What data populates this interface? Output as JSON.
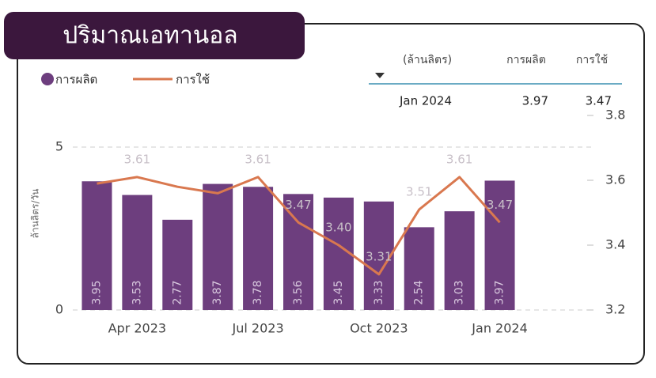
{
  "chart_data": {
    "type": "bar-line",
    "title": "ปริมาณเอทานอล",
    "y_label": "ล้านลิตร/วัน",
    "categories": [
      null,
      "Apr 2023",
      null,
      null,
      "Jul 2023",
      null,
      null,
      "Oct 2023",
      null,
      null,
      "Jan 2024"
    ],
    "series": [
      {
        "name": "การผลิต",
        "type": "bar",
        "color": "#6d3e7e",
        "values": [
          3.95,
          3.53,
          2.77,
          3.87,
          3.78,
          3.56,
          3.45,
          3.33,
          2.54,
          3.03,
          3.97
        ]
      },
      {
        "name": "การใช้",
        "type": "line",
        "axis": "y2",
        "color": "#d9784f",
        "values": [
          3.59,
          3.61,
          3.58,
          3.56,
          3.61,
          3.47,
          3.4,
          3.31,
          3.51,
          3.61,
          3.47
        ],
        "value_labels": [
          null,
          "3.61",
          null,
          null,
          "3.61",
          "3.47",
          "3.40",
          "3.31",
          "3.51",
          "3.61",
          "3.47"
        ]
      }
    ],
    "ylim": [
      0,
      5
    ],
    "yticks": [
      0,
      5
    ],
    "y2lim": [
      3.2,
      3.8
    ],
    "y2ticks": [
      3.2,
      3.4,
      3.6,
      3.8
    ],
    "grid": true,
    "tooltip": {
      "headers": [
        "(ล้านลิตร)",
        "การผลิต",
        "การใช้"
      ],
      "row": [
        "Jan 2024",
        3.97,
        3.47
      ]
    }
  }
}
